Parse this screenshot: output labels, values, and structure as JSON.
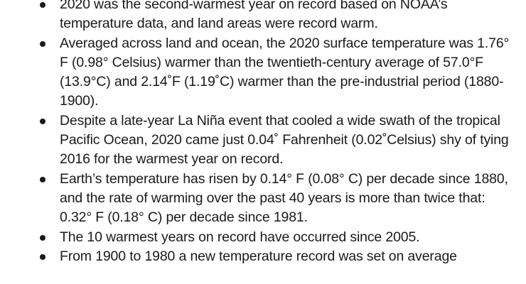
{
  "bullets": [
    {
      "text": "2020 was the second-warmest year on record based on NOAA’s temperature data, and land areas were record warm."
    },
    {
      "text": "Averaged across land and ocean, the 2020 surface temperature was 1.76° F (0.98° Celsius) warmer than the twentieth-century average of 57.0°F (13.9°C) and 2.14˚F (1.19˚C) warmer than the pre-industrial period (1880-1900)."
    },
    {
      "text": "Despite a late-year La Niña event that cooled a wide swath of the tropical Pacific Ocean, 2020 came just 0.04˚ Fahrenheit (0.02˚Celsius) shy of tying 2016 for the warmest year on record."
    },
    {
      "text": "Earth’s temperature has risen by 0.14° F (0.08° C) per decade since 1880, and the rate of warming over the past 40 years is more than twice that: 0.32° F (0.18° C) per decade since 1981."
    },
    {
      "text": "The 10 warmest years on record have occurred since 2005."
    },
    {
      "text": "From 1900 to 1980 a new temperature record was set on average"
    }
  ]
}
